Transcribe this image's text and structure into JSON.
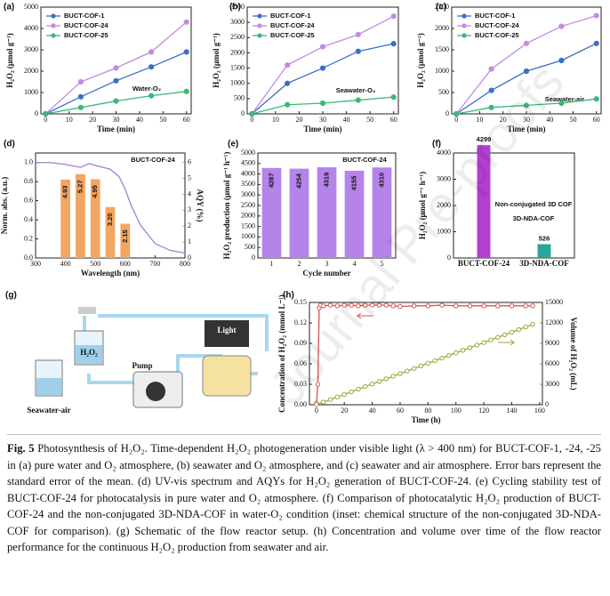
{
  "chart_data": [
    {
      "type": "line",
      "panel": "(a)",
      "annotation": "Water-O₂",
      "xlabel": "Time (min)",
      "ylabel": "H₂O₂ (μmol g⁻¹)",
      "x": [
        0,
        15,
        30,
        45,
        60
      ],
      "xlim": [
        -2,
        62
      ],
      "xticks": [
        0,
        10,
        20,
        30,
        40,
        50,
        60
      ],
      "ylim": [
        0,
        5000
      ],
      "yticks": [
        0,
        1000,
        2000,
        3000,
        4000,
        5000
      ],
      "legend": "upper left",
      "series": [
        {
          "name": "BUCT-COF-1",
          "color": "#3b6fc6",
          "values": [
            0,
            800,
            1550,
            2200,
            2900
          ]
        },
        {
          "name": "BUCT-COF-24",
          "color": "#c48ae2",
          "values": [
            0,
            1500,
            2150,
            2900,
            4300
          ]
        },
        {
          "name": "BUCT-COF-25",
          "color": "#3cb878",
          "values": [
            0,
            300,
            600,
            850,
            1050
          ]
        }
      ]
    },
    {
      "type": "line",
      "panel": "(b)",
      "annotation": "Seawater-O₂",
      "xlabel": "Time (min)",
      "ylabel": "H₂O₂ (μmol g⁻¹)",
      "x": [
        0,
        15,
        30,
        45,
        60
      ],
      "xlim": [
        -2,
        62
      ],
      "xticks": [
        0,
        10,
        20,
        30,
        40,
        50,
        60
      ],
      "ylim": [
        0,
        3500
      ],
      "yticks": [
        0,
        500,
        1000,
        1500,
        2000,
        2500,
        3000,
        3500
      ],
      "legend": "upper left",
      "series": [
        {
          "name": "BUCT-COF-1",
          "color": "#3b6fc6",
          "values": [
            0,
            1000,
            1500,
            2050,
            2300
          ]
        },
        {
          "name": "BUCT-COF-24",
          "color": "#c48ae2",
          "values": [
            0,
            1600,
            2200,
            2600,
            3200
          ]
        },
        {
          "name": "BUCT-COF-25",
          "color": "#3cb878",
          "values": [
            0,
            300,
            350,
            450,
            550
          ]
        }
      ]
    },
    {
      "type": "line",
      "panel": "(c)",
      "annotation": "Seawater-air",
      "xlabel": "Time (min)",
      "ylabel": "H₂O₂ (μmol g⁻¹)",
      "x": [
        0,
        15,
        30,
        45,
        60
      ],
      "xlim": [
        -2,
        62
      ],
      "xticks": [
        0,
        10,
        20,
        30,
        40,
        50,
        60
      ],
      "ylim": [
        0,
        2500
      ],
      "yticks": [
        0,
        500,
        1000,
        1500,
        2000,
        2500
      ],
      "legend": "upper left",
      "series": [
        {
          "name": "BUCT-COF-1",
          "color": "#3b6fc6",
          "values": [
            0,
            550,
            1000,
            1250,
            1650
          ]
        },
        {
          "name": "BUCT-COF-24",
          "color": "#c48ae2",
          "values": [
            0,
            1050,
            1650,
            2050,
            2300
          ]
        },
        {
          "name": "BUCT-COF-25",
          "color": "#3cb878",
          "values": [
            0,
            150,
            200,
            250,
            350
          ]
        }
      ]
    },
    {
      "type": "combo",
      "panel": "(d)",
      "title": "BUCT-COF-24",
      "xlabel": "Wavelength (nm)",
      "ylabel": "Norm. abs. (a.u.)",
      "y2label": "AQY (%)",
      "xlim": [
        300,
        800
      ],
      "xticks": [
        300,
        400,
        500,
        600,
        700,
        800
      ],
      "ylim": [
        0,
        1.1
      ],
      "yticks": [
        {
          "value": 0,
          "label": "0.0"
        },
        0.2,
        0.4,
        0.6,
        0.8,
        {
          "value": 1,
          "label": "1.0"
        }
      ],
      "y2lim": [
        0,
        6.6
      ],
      "y2ticks": [
        0,
        1,
        2,
        3,
        4,
        5,
        6
      ],
      "series": [
        {
          "type": "bar",
          "axis": "y2",
          "color": "#f3a562",
          "x": [
            400,
            450,
            500,
            550,
            600
          ],
          "values": [
            4.93,
            5.27,
            4.95,
            3.2,
            2.15
          ],
          "value_labels": [
            "4.93",
            "5.27",
            "4.95",
            "3.20",
            "2.15"
          ]
        },
        {
          "type": "line",
          "color": "#9c80d4",
          "x": [
            300,
            350,
            400,
            450,
            480,
            500,
            550,
            580,
            600,
            620,
            650,
            700,
            750,
            800
          ],
          "values": [
            1,
            1,
            0.98,
            0.95,
            0.99,
            0.97,
            0.93,
            0.85,
            0.72,
            0.55,
            0.35,
            0.15,
            0.08,
            0.05
          ]
        }
      ]
    },
    {
      "type": "bar",
      "panel": "(e)",
      "title": "BUCT-COF-24",
      "xlabel": "Cycle number",
      "ylabel": "H₂O₂ production (μmol g⁻¹ h⁻¹)",
      "categories": [
        "1",
        "2",
        "3",
        "4",
        "5"
      ],
      "values": [
        4287,
        4254,
        4319,
        4155,
        4310
      ],
      "color": "#b583ea",
      "ylim": [
        0,
        5000
      ],
      "yticks": [
        0,
        500,
        1000,
        1500,
        2000,
        2500,
        3000,
        3500,
        4000,
        4500,
        5000
      ]
    },
    {
      "type": "bar",
      "panel": "(f)",
      "ylabel": "H₂O₂ (μmol g⁻¹ h⁻¹)",
      "annotations": [
        "Non-conjugated 3D COF",
        "3D-NDA-COF"
      ],
      "categories": [
        "BUCT-COF-24",
        "3D-NDA-COF"
      ],
      "values": [
        4299,
        526
      ],
      "colors": [
        "#b23fd2",
        "#2aa59a"
      ],
      "ylim": [
        0,
        4000
      ],
      "yticks": [
        0,
        1000,
        2000,
        3000,
        4000
      ]
    },
    {
      "type": "line",
      "panel": "(h)",
      "xlabel": "Time (h)",
      "ylabel": "Concentration of H₂O₂ (mmol L⁻¹)",
      "y2label": "Volume of H₂O₂ (mL)",
      "xlim": [
        -5,
        162
      ],
      "xticks": [
        0,
        20,
        40,
        60,
        80,
        100,
        120,
        140,
        160
      ],
      "ylim": [
        0,
        0.15
      ],
      "yticks": [
        {
          "value": 0,
          "label": "0.00"
        },
        0.03,
        0.06,
        0.09,
        0.12,
        0.15
      ],
      "y2lim": [
        0,
        15000
      ],
      "y2ticks": [
        0,
        3000,
        6000,
        9000,
        12000,
        15000
      ],
      "series": [
        {
          "color": "#d9534f",
          "x": [
            0,
            1,
            2,
            3,
            5,
            10,
            15,
            20,
            25,
            30,
            35,
            40,
            45,
            50,
            55,
            60,
            70,
            80,
            90,
            100,
            110,
            120,
            130,
            140,
            150,
            155
          ],
          "values": [
            0.002,
            0.03,
            0.142,
            0.146,
            0.145,
            0.146,
            0.145,
            0.146,
            0.146,
            0.145,
            0.146,
            0.146,
            0.146,
            0.146,
            0.145,
            0.144,
            0.145,
            0.145,
            0.146,
            0.145,
            0.145,
            0.145,
            0.145,
            0.145,
            0.145,
            0.145
          ]
        },
        {
          "axis": "y2",
          "color": "#a3a33c",
          "x": [
            0,
            5,
            10,
            15,
            20,
            25,
            30,
            35,
            40,
            45,
            50,
            55,
            60,
            65,
            70,
            75,
            80,
            85,
            90,
            95,
            100,
            105,
            110,
            115,
            120,
            125,
            130,
            135,
            140,
            145,
            150,
            155
          ],
          "values": [
            0,
            380,
            760,
            1140,
            1520,
            1900,
            2280,
            2660,
            3040,
            3420,
            3800,
            4180,
            4560,
            4940,
            5320,
            5700,
            6080,
            6460,
            6840,
            7220,
            7600,
            7980,
            8360,
            8740,
            9120,
            9500,
            9880,
            10260,
            10640,
            11020,
            11400,
            11780
          ]
        }
      ]
    }
  ],
  "schematic": {
    "panel": "(g)",
    "labels": [
      "H₂O₂",
      "Pump",
      "Light",
      "Seawater-air"
    ]
  },
  "watermark": "Journal Pre-proofs",
  "caption": {
    "label": "Fig. 5",
    "text": "Photosynthesis of H₂O₂. Time-dependent H₂O₂ photogeneration under visible light (λ > 400 nm) for BUCT-COF-1, -24, -25 in (a) pure water and O₂ atmosphere, (b) seawater and O₂ atmosphere, and (c) seawater and air atmosphere. Error bars represent the standard error of the mean. (d) UV-vis spectrum and AQYs for H₂O₂ generation of BUCT-COF-24. (e) Cycling stability test of BUCT-COF-24 for photocatalysis in pure water and O₂ atmosphere. (f) Comparison of photocatalytic H₂O₂ production of BUCT-COF-24 and the non-conjugated 3D-NDA-COF in water-O₂ condition (inset: chemical structure of the non-conjugated 3D-NDA-COF for comparison). (g) Schematic of the flow reactor setup. (h) Concentration and volume over time of the flow reactor performance for the continuous H₂O₂ production from seawater and air."
  }
}
